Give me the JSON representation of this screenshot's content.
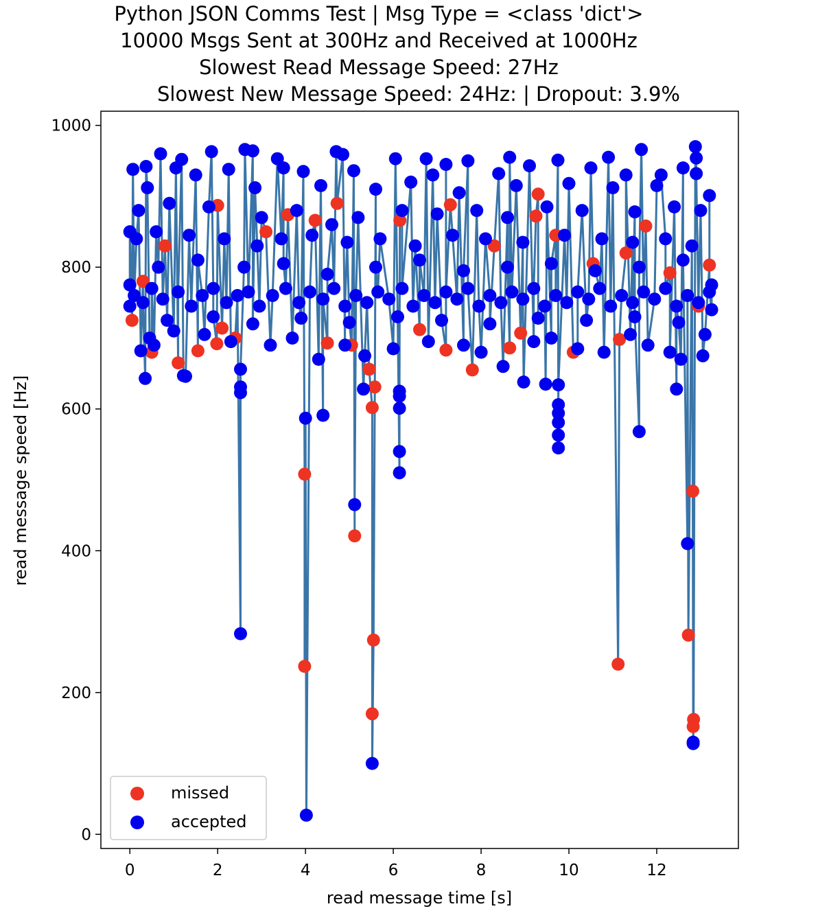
{
  "chart_data": {
    "type": "scatter",
    "title_lines": [
      "Python JSON Comms Test | Msg Type = <class 'dict'>",
      "10000 Msgs Sent at 300Hz and Received at 1000Hz",
      "Slowest Read Message Speed: 27Hz",
      "Slowest New Message Speed: 24Hz: | Dropout: 3.9%"
    ],
    "xlabel": "read message time [s]",
    "ylabel": "read message speed [Hz]",
    "xlim": [
      -0.66,
      13.86
    ],
    "ylim": [
      -20,
      1020
    ],
    "x_ticks": [
      0,
      2,
      4,
      6,
      8,
      10,
      12
    ],
    "y_ticks": [
      0,
      200,
      400,
      600,
      800,
      1000
    ],
    "legend": {
      "placement": "lower-left",
      "entries": [
        "missed",
        "accepted"
      ]
    },
    "line_color": "#3a75a8",
    "colors": {
      "missed": "#ee3322",
      "accepted": "#0000ee"
    },
    "series": [
      {
        "name": "missed",
        "color": "#ee3322",
        "points": [
          [
            3.98,
            508
          ],
          [
            3.98,
            237
          ],
          [
            5.12,
            421
          ],
          [
            5.52,
            602
          ],
          [
            5.55,
            274
          ],
          [
            5.52,
            170
          ],
          [
            5.58,
            631
          ],
          [
            12.72,
            281
          ],
          [
            12.82,
            484
          ],
          [
            12.84,
            162
          ],
          [
            12.83,
            152
          ],
          [
            11.12,
            240
          ],
          [
            1.1,
            665
          ],
          [
            0.05,
            725
          ],
          [
            0.5,
            680
          ],
          [
            0.8,
            830
          ],
          [
            1.55,
            682
          ],
          [
            1.98,
            692
          ],
          [
            2.1,
            714
          ],
          [
            2.0,
            887
          ],
          [
            3.6,
            874
          ],
          [
            4.22,
            866
          ],
          [
            4.72,
            890
          ],
          [
            5.05,
            690
          ],
          [
            5.45,
            656
          ],
          [
            6.15,
            866
          ],
          [
            7.2,
            683
          ],
          [
            7.8,
            655
          ],
          [
            8.3,
            830
          ],
          [
            8.65,
            686
          ],
          [
            9.3,
            903
          ],
          [
            9.25,
            872
          ],
          [
            10.1,
            680
          ],
          [
            10.55,
            805
          ],
          [
            11.15,
            698
          ],
          [
            11.75,
            858
          ],
          [
            12.3,
            792
          ],
          [
            12.95,
            745
          ],
          [
            13.2,
            803
          ],
          [
            7.3,
            888
          ],
          [
            6.6,
            712
          ],
          [
            3.1,
            850
          ],
          [
            8.9,
            707
          ],
          [
            11.3,
            820
          ],
          [
            2.4,
            700
          ],
          [
            9.7,
            845
          ],
          [
            0.3,
            780
          ],
          [
            4.5,
            693
          ]
        ]
      },
      {
        "name": "accepted",
        "color": "#0000ee",
        "points": [
          [
            4.02,
            27
          ],
          [
            5.52,
            100
          ],
          [
            12.83,
            128
          ],
          [
            12.83,
            130
          ],
          [
            2.52,
            283
          ],
          [
            12.7,
            410
          ],
          [
            5.12,
            465
          ],
          [
            6.14,
            510
          ],
          [
            6.14,
            540
          ],
          [
            4.0,
            587
          ],
          [
            4.4,
            591
          ],
          [
            6.14,
            601
          ],
          [
            6.14,
            618
          ],
          [
            6.14,
            625
          ],
          [
            2.52,
            623
          ],
          [
            2.52,
            631
          ],
          [
            2.52,
            656
          ],
          [
            5.32,
            628
          ],
          [
            9.76,
            545
          ],
          [
            9.76,
            563
          ],
          [
            9.76,
            581
          ],
          [
            9.76,
            594
          ],
          [
            9.76,
            606
          ],
          [
            9.76,
            634
          ],
          [
            11.6,
            568
          ],
          [
            12.45,
            628
          ],
          [
            0.35,
            643
          ],
          [
            1.22,
            647
          ],
          [
            1.27,
            646
          ],
          [
            9.47,
            635
          ],
          [
            8.97,
            638
          ],
          [
            0.25,
            682
          ],
          [
            0.7,
            960
          ],
          [
            1.05,
            940
          ],
          [
            1.86,
            963
          ],
          [
            2.62,
            966
          ],
          [
            2.8,
            964
          ],
          [
            3.36,
            953
          ],
          [
            4.7,
            963
          ],
          [
            4.85,
            959
          ],
          [
            6.05,
            953
          ],
          [
            6.75,
            953
          ],
          [
            7.7,
            950
          ],
          [
            8.65,
            955
          ],
          [
            9.75,
            951
          ],
          [
            10.9,
            955
          ],
          [
            11.65,
            966
          ],
          [
            12.88,
            970
          ],
          [
            12.9,
            954
          ],
          [
            0.07,
            938
          ],
          [
            0.37,
            942
          ],
          [
            1.18,
            952
          ],
          [
            2.25,
            938
          ],
          [
            3.5,
            940
          ],
          [
            3.95,
            935
          ],
          [
            5.1,
            936
          ],
          [
            6.9,
            930
          ],
          [
            7.2,
            945
          ],
          [
            8.4,
            932
          ],
          [
            9.1,
            943
          ],
          [
            10.5,
            940
          ],
          [
            11.3,
            930
          ],
          [
            12.1,
            930
          ],
          [
            12.6,
            940
          ],
          [
            12.9,
            932
          ],
          [
            13.2,
            901
          ],
          [
            0.4,
            912
          ],
          [
            1.5,
            930
          ],
          [
            2.85,
            912
          ],
          [
            4.35,
            915
          ],
          [
            5.6,
            910
          ],
          [
            6.4,
            920
          ],
          [
            7.5,
            905
          ],
          [
            8.8,
            915
          ],
          [
            10.0,
            918
          ],
          [
            11.0,
            912
          ],
          [
            12.0,
            915
          ],
          [
            0.2,
            880
          ],
          [
            0.9,
            890
          ],
          [
            1.8,
            885
          ],
          [
            3.0,
            870
          ],
          [
            3.8,
            880
          ],
          [
            4.6,
            860
          ],
          [
            5.2,
            870
          ],
          [
            6.2,
            880
          ],
          [
            7.0,
            875
          ],
          [
            7.9,
            880
          ],
          [
            8.6,
            870
          ],
          [
            9.5,
            885
          ],
          [
            10.3,
            880
          ],
          [
            11.5,
            878
          ],
          [
            12.4,
            885
          ],
          [
            13.0,
            880
          ],
          [
            0.15,
            840
          ],
          [
            0.6,
            850
          ],
          [
            1.35,
            845
          ],
          [
            2.15,
            840
          ],
          [
            2.9,
            830
          ],
          [
            3.45,
            840
          ],
          [
            4.15,
            845
          ],
          [
            4.95,
            835
          ],
          [
            5.7,
            840
          ],
          [
            6.5,
            830
          ],
          [
            7.35,
            845
          ],
          [
            8.1,
            840
          ],
          [
            8.95,
            835
          ],
          [
            9.9,
            845
          ],
          [
            10.75,
            840
          ],
          [
            11.45,
            835
          ],
          [
            12.2,
            840
          ],
          [
            12.8,
            830
          ],
          [
            0.45,
            700
          ],
          [
            0.55,
            690
          ],
          [
            1.0,
            710
          ],
          [
            1.7,
            705
          ],
          [
            2.3,
            695
          ],
          [
            3.2,
            690
          ],
          [
            3.7,
            700
          ],
          [
            4.3,
            670
          ],
          [
            4.9,
            690
          ],
          [
            5.35,
            675
          ],
          [
            6.0,
            685
          ],
          [
            6.8,
            695
          ],
          [
            7.6,
            690
          ],
          [
            8.0,
            680
          ],
          [
            8.5,
            660
          ],
          [
            9.2,
            695
          ],
          [
            9.6,
            700
          ],
          [
            10.2,
            685
          ],
          [
            10.8,
            680
          ],
          [
            11.4,
            705
          ],
          [
            11.8,
            690
          ],
          [
            12.3,
            680
          ],
          [
            12.55,
            670
          ],
          [
            13.1,
            705
          ],
          [
            13.05,
            675
          ],
          [
            0.1,
            760
          ],
          [
            0.3,
            750
          ],
          [
            0.5,
            770
          ],
          [
            0.75,
            755
          ],
          [
            1.1,
            765
          ],
          [
            1.4,
            745
          ],
          [
            1.65,
            760
          ],
          [
            1.9,
            770
          ],
          [
            2.2,
            750
          ],
          [
            2.45,
            760
          ],
          [
            2.7,
            765
          ],
          [
            2.95,
            745
          ],
          [
            3.25,
            760
          ],
          [
            3.55,
            770
          ],
          [
            3.85,
            750
          ],
          [
            4.1,
            765
          ],
          [
            4.4,
            755
          ],
          [
            4.65,
            770
          ],
          [
            4.9,
            745
          ],
          [
            5.15,
            760
          ],
          [
            5.4,
            750
          ],
          [
            5.65,
            765
          ],
          [
            5.9,
            755
          ],
          [
            6.2,
            770
          ],
          [
            6.45,
            745
          ],
          [
            6.7,
            760
          ],
          [
            6.95,
            750
          ],
          [
            7.2,
            765
          ],
          [
            7.45,
            755
          ],
          [
            7.7,
            770
          ],
          [
            7.95,
            745
          ],
          [
            8.2,
            760
          ],
          [
            8.45,
            750
          ],
          [
            8.7,
            765
          ],
          [
            8.95,
            755
          ],
          [
            9.2,
            770
          ],
          [
            9.45,
            745
          ],
          [
            9.7,
            760
          ],
          [
            9.95,
            750
          ],
          [
            10.2,
            765
          ],
          [
            10.45,
            755
          ],
          [
            10.7,
            770
          ],
          [
            10.95,
            745
          ],
          [
            11.2,
            760
          ],
          [
            11.45,
            750
          ],
          [
            11.7,
            765
          ],
          [
            11.95,
            755
          ],
          [
            12.2,
            770
          ],
          [
            12.45,
            745
          ],
          [
            12.7,
            760
          ],
          [
            12.95,
            750
          ],
          [
            13.2,
            765
          ],
          [
            0.0,
            775
          ],
          [
            0.0,
            745
          ],
          [
            0.0,
            850
          ],
          [
            13.25,
            740
          ],
          [
            13.25,
            775
          ],
          [
            0.65,
            800
          ],
          [
            1.55,
            810
          ],
          [
            2.6,
            800
          ],
          [
            3.5,
            805
          ],
          [
            4.5,
            790
          ],
          [
            5.6,
            800
          ],
          [
            6.6,
            810
          ],
          [
            7.6,
            795
          ],
          [
            8.6,
            800
          ],
          [
            9.6,
            805
          ],
          [
            10.6,
            795
          ],
          [
            11.6,
            800
          ],
          [
            12.6,
            810
          ],
          [
            0.85,
            725
          ],
          [
            1.9,
            730
          ],
          [
            2.8,
            720
          ],
          [
            3.9,
            728
          ],
          [
            5.0,
            722
          ],
          [
            6.1,
            730
          ],
          [
            7.1,
            725
          ],
          [
            8.2,
            720
          ],
          [
            9.3,
            728
          ],
          [
            10.4,
            725
          ],
          [
            11.5,
            730
          ],
          [
            12.5,
            722
          ]
        ]
      }
    ]
  }
}
